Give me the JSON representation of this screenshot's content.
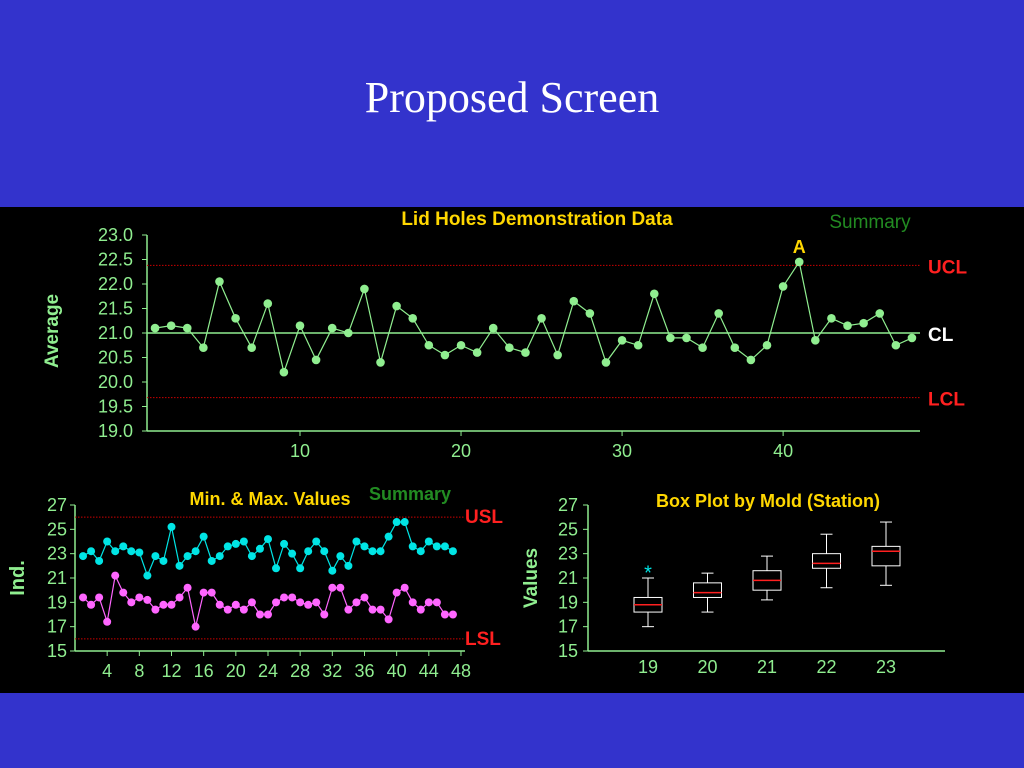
{
  "slide": {
    "title": "Proposed Screen"
  },
  "colors": {
    "background": "#3333cc",
    "panel": "#000000",
    "axis": "#90ee90",
    "avg_series": "#90ee90",
    "max_series": "#00e5e5",
    "min_series": "#ff66ff",
    "chart_title": "#ffd700",
    "summary": "#228b22",
    "limit_label": "#ff2020",
    "limit_line": "#cc0000",
    "alarm": "#ffd700",
    "box": "#ffffff",
    "median": "#ff2020",
    "outlier": "#00e5e5"
  },
  "chart_data": [
    {
      "type": "line",
      "title": "Lid Holes Demonstration Data",
      "summary_label": "Summary",
      "ylabel": "Average",
      "xlabel": "",
      "ylim": [
        19.0,
        23.0
      ],
      "xlim": [
        0.5,
        48.5
      ],
      "yticks": [
        "23.0",
        "22.5",
        "22.0",
        "21.5",
        "21.0",
        "20.5",
        "20.0",
        "19.5",
        "19.0"
      ],
      "xticks": [
        10,
        20,
        30,
        40
      ],
      "grid": false,
      "ucl": 22.38,
      "cl": 21.0,
      "lcl": 19.68,
      "ucl_label": "UCL",
      "cl_label": "CL",
      "lcl_label": "LCL",
      "alarm": {
        "x": 41,
        "label": "A"
      },
      "series": [
        {
          "values": [
            21.1,
            21.15,
            21.1,
            20.7,
            22.05,
            21.3,
            20.7,
            21.6,
            20.2,
            21.15,
            20.45,
            21.1,
            21.0,
            21.9,
            20.4,
            21.55,
            21.3,
            20.75,
            20.55,
            20.75,
            20.6,
            21.1,
            20.7,
            20.6,
            21.3,
            20.55,
            21.65,
            21.4,
            20.4,
            20.85,
            20.75,
            21.8,
            20.9,
            20.9,
            20.7,
            21.4,
            20.7,
            20.45,
            20.75,
            21.95,
            22.45,
            20.85,
            21.3,
            21.15,
            21.2,
            21.4,
            20.75,
            20.9
          ]
        }
      ]
    },
    {
      "type": "line",
      "title": "Min. & Max. Values",
      "summary_label": "Summary",
      "ylabel": "Ind.",
      "ylim": [
        15,
        27
      ],
      "xlim": [
        0,
        48.5
      ],
      "yticks": [
        "27",
        "25",
        "23",
        "21",
        "19",
        "17",
        "15"
      ],
      "xticks": [
        "4",
        "8",
        "12",
        "16",
        "20",
        "24",
        "28",
        "32",
        "36",
        "40",
        "44",
        "48"
      ],
      "usl": 26.0,
      "lsl": 16.0,
      "usl_label": "USL",
      "lsl_label": "LSL",
      "series": [
        {
          "role": "max",
          "values": [
            22.8,
            23.2,
            22.4,
            24.0,
            23.2,
            23.6,
            23.2,
            23.1,
            21.2,
            22.8,
            22.4,
            25.2,
            22.0,
            22.8,
            23.2,
            24.4,
            22.4,
            22.8,
            23.6,
            23.8,
            24.0,
            22.8,
            23.4,
            24.2,
            21.8,
            23.8,
            23.0,
            21.8,
            23.2,
            24.0,
            23.2,
            21.6,
            22.8,
            22.0,
            24.0,
            23.6,
            23.2,
            23.2,
            24.4,
            25.6,
            25.6,
            23.6,
            23.2,
            24.0,
            23.6,
            23.6,
            23.2
          ]
        },
        {
          "role": "min",
          "values": [
            19.4,
            18.8,
            19.4,
            17.4,
            21.2,
            19.8,
            19.0,
            19.4,
            19.2,
            18.4,
            18.8,
            18.8,
            19.4,
            20.2,
            17.0,
            19.8,
            19.8,
            18.8,
            18.4,
            18.8,
            18.4,
            19.0,
            18.0,
            18.0,
            19.0,
            19.4,
            19.4,
            19.0,
            18.8,
            19.0,
            18.0,
            20.2,
            20.2,
            18.4,
            19.0,
            19.4,
            18.4,
            18.4,
            17.6,
            19.8,
            20.2,
            19.0,
            18.4,
            19.0,
            19.0,
            18.0,
            18.0
          ]
        }
      ]
    },
    {
      "type": "box",
      "title": "Box Plot by Mold (Station)",
      "ylabel": "Values",
      "ylim": [
        15,
        27
      ],
      "yticks": [
        "27",
        "25",
        "23",
        "21",
        "19",
        "17",
        "15"
      ],
      "categories": [
        "19",
        "20",
        "21",
        "22",
        "23"
      ],
      "boxes": [
        {
          "whisker_low": 17.0,
          "q1": 18.2,
          "median": 18.8,
          "q3": 19.4,
          "whisker_high": 21.0,
          "outliers": [
            21.6
          ]
        },
        {
          "whisker_low": 18.2,
          "q1": 19.4,
          "median": 19.8,
          "q3": 20.6,
          "whisker_high": 21.4,
          "outliers": []
        },
        {
          "whisker_low": 19.2,
          "q1": 20.0,
          "median": 20.8,
          "q3": 21.6,
          "whisker_high": 22.8,
          "outliers": []
        },
        {
          "whisker_low": 20.2,
          "q1": 21.8,
          "median": 22.2,
          "q3": 23.0,
          "whisker_high": 24.6,
          "outliers": []
        },
        {
          "whisker_low": 20.4,
          "q1": 22.0,
          "median": 23.2,
          "q3": 23.6,
          "whisker_high": 25.6,
          "outliers": []
        }
      ],
      "outlier_marker": "*"
    }
  ]
}
